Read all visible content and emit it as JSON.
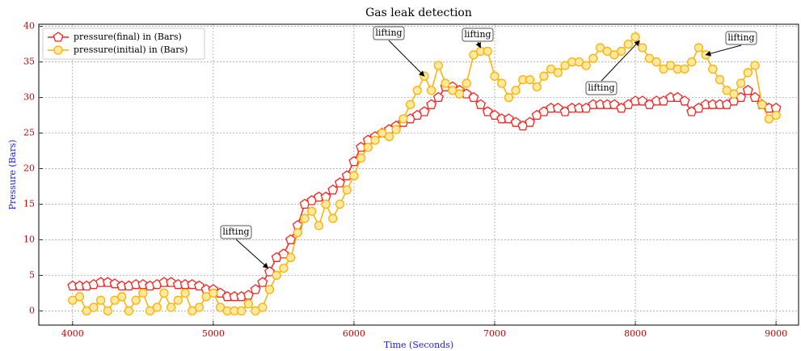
{
  "chart_data": {
    "type": "line",
    "title": "Gas leak detection",
    "x_label": "Time (Seconds)",
    "y_label": "Pressure (Bars)",
    "x": [
      4000,
      4050,
      4100,
      4150,
      4200,
      4250,
      4300,
      4350,
      4400,
      4450,
      4500,
      4550,
      4600,
      4650,
      4700,
      4750,
      4800,
      4850,
      4900,
      4950,
      5000,
      5050,
      5100,
      5150,
      5200,
      5250,
      5300,
      5350,
      5400,
      5450,
      5500,
      5550,
      5600,
      5650,
      5700,
      5750,
      5800,
      5850,
      5900,
      5950,
      6000,
      6050,
      6100,
      6150,
      6200,
      6250,
      6300,
      6350,
      6400,
      6450,
      6500,
      6550,
      6600,
      6650,
      6700,
      6750,
      6800,
      6850,
      6900,
      6950,
      7000,
      7050,
      7100,
      7150,
      7200,
      7250,
      7300,
      7350,
      7400,
      7450,
      7500,
      7550,
      7600,
      7650,
      7700,
      7750,
      7800,
      7850,
      7900,
      7950,
      8000,
      8050,
      8100,
      8150,
      8200,
      8250,
      8300,
      8350,
      8400,
      8450,
      8500,
      8550,
      8600,
      8650,
      8700,
      8750,
      8800,
      8850,
      8900,
      8950,
      9000
    ],
    "series": [
      {
        "name": "pressure(final) in (Bars)",
        "color": "#ff2020",
        "marker": "pentagon",
        "values": [
          3.5,
          3.5,
          3.5,
          3.7,
          4,
          4,
          3.8,
          3.5,
          3.5,
          3.7,
          3.7,
          3.5,
          3.7,
          4,
          4,
          3.7,
          3.7,
          3.7,
          3.5,
          3.0,
          3.0,
          2.5,
          2,
          2,
          2,
          2.2,
          3,
          4,
          5.5,
          7.5,
          8,
          10,
          12,
          15,
          15.5,
          16,
          16,
          17,
          18,
          19,
          21,
          23,
          24,
          24.5,
          25,
          25.5,
          26,
          26.5,
          27,
          27.5,
          28,
          29,
          30,
          31.5,
          31.5,
          31,
          30.5,
          30,
          29,
          28,
          27.5,
          27,
          27,
          26.5,
          26,
          26.5,
          27.5,
          28,
          28.5,
          28.5,
          28,
          28.5,
          28.5,
          28.5,
          29,
          29,
          29,
          29,
          28.5,
          29,
          29.5,
          29.5,
          29,
          29.5,
          29.5,
          30,
          30,
          29.5,
          28,
          28.5,
          29,
          29,
          29,
          29,
          29.5,
          30,
          31,
          30,
          29,
          28.5,
          28.5
        ]
      },
      {
        "name": "pressure(initial) in (Bars)",
        "color": "#ffb000",
        "marker": "circle",
        "values": [
          1.5,
          2,
          0,
          0.5,
          1.5,
          0,
          1.5,
          2,
          0,
          1.5,
          2.5,
          0,
          0.5,
          2.5,
          0.5,
          1.5,
          2.5,
          0,
          0.5,
          2,
          2.5,
          0.5,
          0,
          0,
          0,
          1,
          0,
          0.5,
          3,
          5,
          6,
          7.5,
          11,
          13,
          14,
          12,
          15,
          13,
          15,
          17,
          19,
          21.5,
          23,
          24,
          25,
          24.5,
          25.5,
          27,
          29,
          31,
          33,
          31,
          34.5,
          32,
          31,
          30.5,
          32,
          36,
          36.5,
          36.5,
          33,
          32,
          30,
          31,
          32.5,
          32.5,
          31.5,
          33,
          34,
          33.5,
          34.5,
          35,
          35,
          34.5,
          35.5,
          37,
          36.5,
          36,
          36.5,
          37.5,
          38.5,
          37,
          35.5,
          35,
          34,
          34.5,
          34,
          34,
          35,
          37,
          36,
          34,
          32.5,
          31,
          30.5,
          32,
          33.5,
          34.5,
          29,
          27,
          27.5
        ]
      }
    ],
    "annotations": [
      {
        "text": "lifting",
        "x": 5390,
        "y": 6
      },
      {
        "text": "lifting",
        "x": 6500,
        "y": 33
      },
      {
        "text": "lifting",
        "x": 6900,
        "y": 37
      },
      {
        "text": "lifting",
        "x": 8030,
        "y": 38
      },
      {
        "text": "lifting",
        "x": 8500,
        "y": 36
      }
    ],
    "xlim": [
      3760,
      9160
    ],
    "ylim": [
      -2,
      40.3
    ],
    "xticks": [
      4000,
      5000,
      6000,
      7000,
      8000,
      9000
    ],
    "yticks": [
      0,
      5,
      10,
      15,
      20,
      25,
      30,
      35,
      40
    ],
    "grid": true,
    "legend": "upper left"
  }
}
